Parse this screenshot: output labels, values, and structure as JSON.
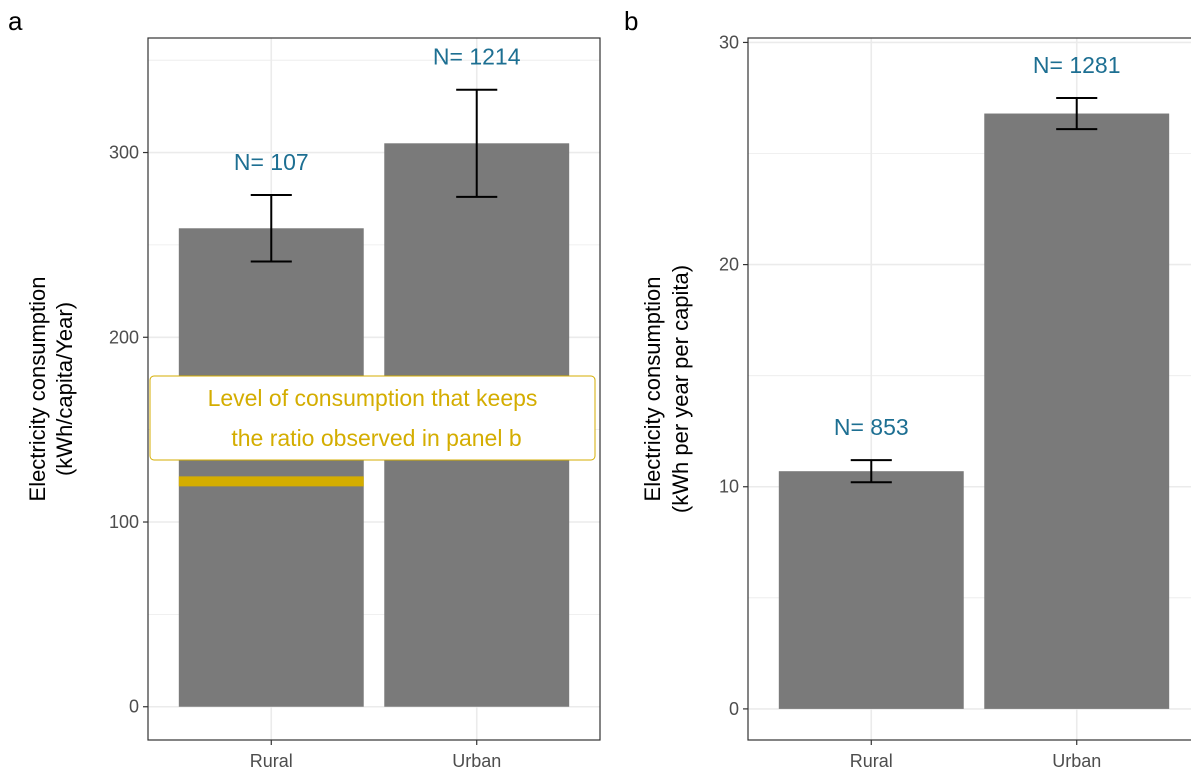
{
  "colors": {
    "bar": "#7a7a7a",
    "n_label": "#1d6f92",
    "reference": "#d4ad00",
    "grid": "#ebebeb",
    "axis": "#333333"
  },
  "chart_data": [
    {
      "type": "bar",
      "panel": "a",
      "categories": [
        "Rural",
        "Urban"
      ],
      "values": [
        259,
        305
      ],
      "error_low": [
        241,
        276
      ],
      "error_high": [
        277,
        334
      ],
      "n_labels": [
        "N= 107",
        "N= 1214"
      ],
      "ylabel": [
        "Electricity consumption",
        "(kWh/capita/Year)"
      ],
      "ylim": [
        -18,
        362
      ],
      "yticks": [
        0,
        100,
        200,
        300
      ],
      "grid": true,
      "reference_line": {
        "category": "Rural",
        "value": 122
      },
      "annotation": [
        "Level of consumption that keeps",
        "the ratio observed in panel b"
      ]
    },
    {
      "type": "bar",
      "panel": "b",
      "categories": [
        "Rural",
        "Urban"
      ],
      "values": [
        10.7,
        26.8
      ],
      "error_low": [
        10.2,
        26.1
      ],
      "error_high": [
        11.2,
        27.5
      ],
      "n_labels": [
        "N= 853",
        "N= 1281"
      ],
      "ylabel": [
        "Electricity consumption",
        "(kWh per year per capita)"
      ],
      "ylim": [
        -1.4,
        30.2
      ],
      "yticks": [
        0,
        10,
        20,
        30
      ],
      "grid": true
    }
  ]
}
